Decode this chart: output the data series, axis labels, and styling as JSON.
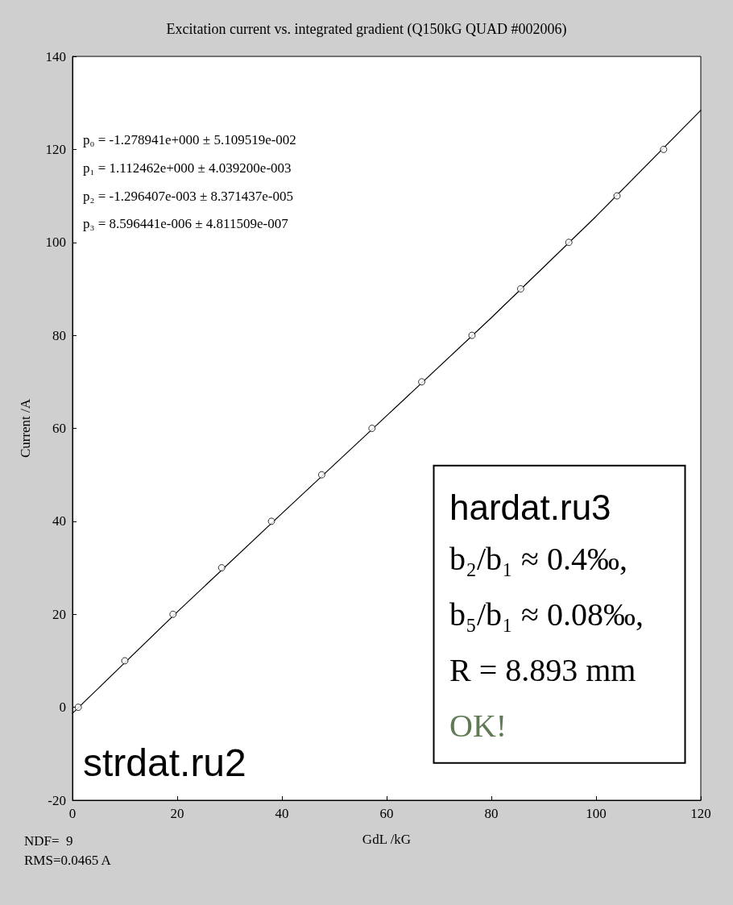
{
  "chart_data": {
    "type": "scatter",
    "title": "Excitation current vs. integrated gradient (Q150kG QUAD #002006)",
    "xlabel": "GdL /kG",
    "ylabel": "Current /A",
    "series": [
      {
        "color": "#000000",
        "marker": "circle",
        "x": [
          1.1,
          10.0,
          19.2,
          28.5,
          38.0,
          47.6,
          57.2,
          66.7,
          76.3,
          85.6,
          94.8,
          104.0,
          112.9
        ],
        "values": [
          0,
          10,
          20,
          30,
          40,
          50,
          60,
          70,
          80,
          90,
          100,
          110,
          120
        ]
      },
      {
        "type": "line",
        "color": "#000000",
        "marker": "none",
        "line_style": "solid",
        "x": [
          0,
          20,
          40,
          60,
          80,
          100,
          120
        ],
        "values": [
          -1.3,
          20.5,
          41.7,
          62.7,
          83.8,
          105.6,
          128.4
        ]
      }
    ],
    "xlim": [
      0,
      120
    ],
    "xticks": [
      0,
      20,
      40,
      60,
      80,
      100,
      120
    ],
    "ylim": [
      -20,
      140
    ],
    "yticks": [
      -20,
      0,
      20,
      40,
      60,
      80,
      100,
      120,
      140
    ],
    "grid": false,
    "annotations": [
      "p₀ = -1.278941e+000 ± 5.109519e-002",
      "p₁ = 1.112462e+000 ± 4.039200e-003",
      "p₂ = -1.296407e-003 ± 8.371437e-005",
      "p₃ = 8.596441e-006 ± 4.811509e-007",
      "strdat.ru2",
      "NDF=  9",
      "RMS=0.0465 A",
      "hardat.ru3",
      "b₂/b₁ ≈ 0.4‰,",
      "b₅/b₁ ≈ 0.08‰,",
      "R = 8.893 mm",
      "OK!"
    ]
  }
}
